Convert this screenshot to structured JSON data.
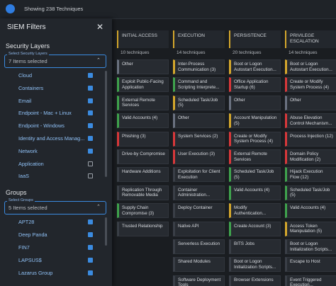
{
  "top_bar": {
    "status": "Showing 238 Techniques"
  },
  "filter_panel": {
    "title": "SIEM Filters",
    "sections": [
      {
        "heading": "Security Layers",
        "select_legend": "Select Security Layers",
        "select_text": "7 Items selected",
        "options": [
          {
            "label": "Cloud",
            "checked": true
          },
          {
            "label": "Containers",
            "checked": true
          },
          {
            "label": "Email",
            "checked": true
          },
          {
            "label": "Endpoint - Mac + Linux",
            "checked": true
          },
          {
            "label": "Endpoint - Windows",
            "checked": true
          },
          {
            "label": "Identity and Access Manag...",
            "checked": true
          },
          {
            "label": "Network",
            "checked": true
          },
          {
            "label": "Application",
            "checked": false
          },
          {
            "label": "IaaS",
            "checked": false
          }
        ]
      },
      {
        "heading": "Groups",
        "select_legend": "Select Groups",
        "select_text": "5 Items selected",
        "options": [
          {
            "label": "APT28",
            "checked": true
          },
          {
            "label": "Deep Panda",
            "checked": true
          },
          {
            "label": "FIN7",
            "checked": true
          },
          {
            "label": "LAPSUS$",
            "checked": true
          },
          {
            "label": "Lazarus Group",
            "checked": true
          }
        ]
      }
    ]
  },
  "matrix": {
    "columns": [
      {
        "title": "INITIAL ACCESS",
        "count": "10 techniques",
        "cells": [
          {
            "label": "Other",
            "color": "#6b7280"
          },
          {
            "label": "Exploit Public-Facing Application",
            "color": "#3fa34d"
          },
          {
            "label": "External Remote Services",
            "color": "#3fa34d"
          },
          {
            "label": "Valid Accounts (4)",
            "color": "#3fa34d"
          },
          {
            "label": "Phishing (3)",
            "color": "#d9383a"
          },
          {
            "label": "Drive-by Compromise",
            "color": "#3a3f47"
          },
          {
            "label": "Hardware Additions",
            "color": "#3a3f47"
          },
          {
            "label": "Replication Through Removable Media",
            "color": "#3a3f47"
          },
          {
            "label": "Supply Chain Compromise (3)",
            "color": "#3fa34d"
          },
          {
            "label": "Trusted Relationship",
            "color": "#3a3f47"
          }
        ]
      },
      {
        "title": "EXECUTION",
        "count": "14 techniques",
        "cells": [
          {
            "label": "Inter-Process Communication (3)",
            "color": "#d4a72c"
          },
          {
            "label": "Command and Scripting Interprete...",
            "color": "#3fa34d"
          },
          {
            "label": "Scheduled Task/Job (5)",
            "color": "#d4a72c"
          },
          {
            "label": "Other",
            "color": "#6b7280"
          },
          {
            "label": "System Services (2)",
            "color": "#d9383a"
          },
          {
            "label": "User Execution (3)",
            "color": "#d9383a"
          },
          {
            "label": "Exploitation for Client Execution",
            "color": "#3a3f47"
          },
          {
            "label": "Container Administration...",
            "color": "#3a3f47"
          },
          {
            "label": "Deploy Container",
            "color": "#3a3f47"
          },
          {
            "label": "Native API",
            "color": "#3a3f47"
          },
          {
            "label": "Serverless Execution",
            "color": "#3a3f47"
          },
          {
            "label": "Shared Modules",
            "color": "#3a3f47"
          },
          {
            "label": "Software Deployment Tools",
            "color": "#3a3f47"
          }
        ]
      },
      {
        "title": "PERSISTENCE",
        "count": "20 techniques",
        "cells": [
          {
            "label": "Boot or Logon Autostart Execution...",
            "color": "#d4a72c"
          },
          {
            "label": "Office Application Startup (6)",
            "color": "#d9383a"
          },
          {
            "label": "Other",
            "color": "#6b7280"
          },
          {
            "label": "Account Manipulation (5)",
            "color": "#d4a72c"
          },
          {
            "label": "Create or Modify System Process (4)",
            "color": "#d9383a"
          },
          {
            "label": "External Remote Services",
            "color": "#d9383a"
          },
          {
            "label": "Scheduled Task/Job (5)",
            "color": "#3fa34d"
          },
          {
            "label": "Valid Accounts (4)",
            "color": "#3fa34d"
          },
          {
            "label": "Modify Authentication...",
            "color": "#d4a72c"
          },
          {
            "label": "Create Account (3)",
            "color": "#3fa34d"
          },
          {
            "label": "BITS Jobs",
            "color": "#3a3f47"
          },
          {
            "label": "Boot or Logon Initialization Scripts...",
            "color": "#3a3f47"
          },
          {
            "label": "Browser Extensions",
            "color": "#3a3f47"
          }
        ]
      },
      {
        "title": "PRIVILEGE ESCALATION",
        "count": "14 techniques",
        "cells": [
          {
            "label": "Boot or Logon Autostart Execution...",
            "color": "#d4a72c"
          },
          {
            "label": "Create or Modify System Process (4)",
            "color": "#d9383a"
          },
          {
            "label": "Other",
            "color": "#6b7280"
          },
          {
            "label": "Abuse Elevation Control Mechanism...",
            "color": "#d9383a"
          },
          {
            "label": "Process Injection (12)",
            "color": "#d9383a"
          },
          {
            "label": "Domain Policy Modification (2)",
            "color": "#d9383a"
          },
          {
            "label": "Hijack Execution Flow (12)",
            "color": "#3fa34d"
          },
          {
            "label": "Scheduled Task/Job (5)",
            "color": "#3fa34d"
          },
          {
            "label": "Valid Accounts (4)",
            "color": "#3fa34d"
          },
          {
            "label": "Access Token Manipulation (5)",
            "color": "#d4a72c"
          },
          {
            "label": "Boot or Logon Initialization Scripts...",
            "color": "#3a3f47"
          },
          {
            "label": "Escape to Host",
            "color": "#3a3f47"
          },
          {
            "label": "Event Triggered Execution...",
            "color": "#3a3f47"
          }
        ]
      }
    ]
  }
}
